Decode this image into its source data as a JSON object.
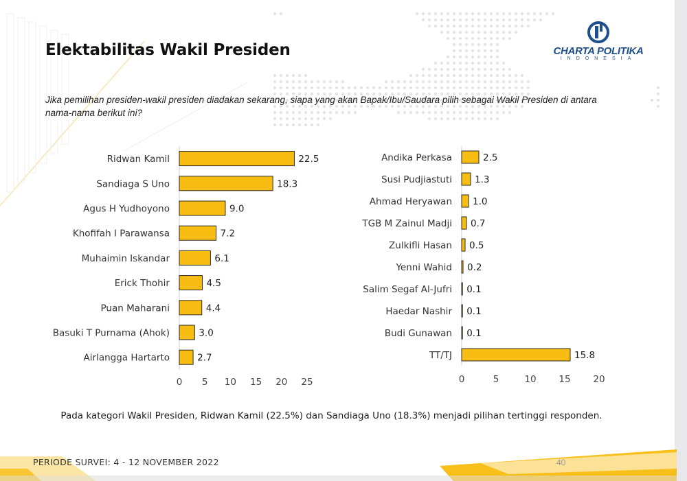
{
  "slide": {
    "title": "Elektabilitas Wakil Presiden",
    "question": "Jika pemilihan presiden-wakil presiden diadakan sekarang, siapa yang akan Bapak/Ibu/Saudara pilih sebagai Wakil Presiden di antara nama-nama berikut ini?",
    "summary": "Pada kategori Wakil Presiden, Ridwan Kamil (22.5%) dan Sandiaga Uno (18.3%) menjadi pilihan tertinggi responden.",
    "period": "PERIODE SURVEI: 4 - 12 NOVEMBER 2022",
    "page_number": "40"
  },
  "logo": {
    "name": "CHARTA POLITIKA",
    "sub": "INDONESIA"
  },
  "colors": {
    "bar_fill": "#f7bd12",
    "bar_stroke": "#2a2a2a",
    "accent": "#f5b800",
    "logo_blue": "#1d4f8c"
  },
  "chart_data": [
    {
      "type": "bar",
      "orientation": "horizontal",
      "categories": [
        "Ridwan Kamil",
        "Sandiaga S Uno",
        "Agus H Yudhoyono",
        "Khofifah I Parawansa",
        "Muhaimin Iskandar",
        "Erick Thohir",
        "Puan Maharani",
        "Basuki T Purnama (Ahok)",
        "Airlangga Hartarto"
      ],
      "values": [
        22.5,
        18.3,
        9.0,
        7.2,
        6.1,
        4.5,
        4.4,
        3.0,
        2.7
      ],
      "value_labels": [
        "22.5",
        "18.3",
        "9.0",
        "7.2",
        "6.1",
        "4.5",
        "4.4",
        "3.0",
        "2.7"
      ],
      "xlim": [
        0,
        25
      ],
      "xticks": [
        0,
        5,
        10,
        15,
        20,
        25
      ],
      "title": "",
      "xlabel": "",
      "ylabel": "",
      "grid": false
    },
    {
      "type": "bar",
      "orientation": "horizontal",
      "categories": [
        "Andika Perkasa",
        "Susi Pudjiastuti",
        "Ahmad Heryawan",
        "TGB M Zainul Madji",
        "Zulkifli Hasan",
        "Yenni Wahid",
        "Salim Segaf Al-Jufri",
        "Haedar Nashir",
        "Budi Gunawan",
        "TT/TJ"
      ],
      "values": [
        2.5,
        1.3,
        1.0,
        0.7,
        0.5,
        0.2,
        0.1,
        0.1,
        0.1,
        15.8
      ],
      "value_labels": [
        "2.5",
        "1.3",
        "1.0",
        "0.7",
        "0.5",
        "0.2",
        "0.1",
        "0.1",
        "0.1",
        "15.8"
      ],
      "xlim": [
        0,
        20
      ],
      "xticks": [
        0,
        5,
        10,
        15,
        20
      ],
      "title": "",
      "xlabel": "",
      "ylabel": "",
      "grid": false
    }
  ]
}
